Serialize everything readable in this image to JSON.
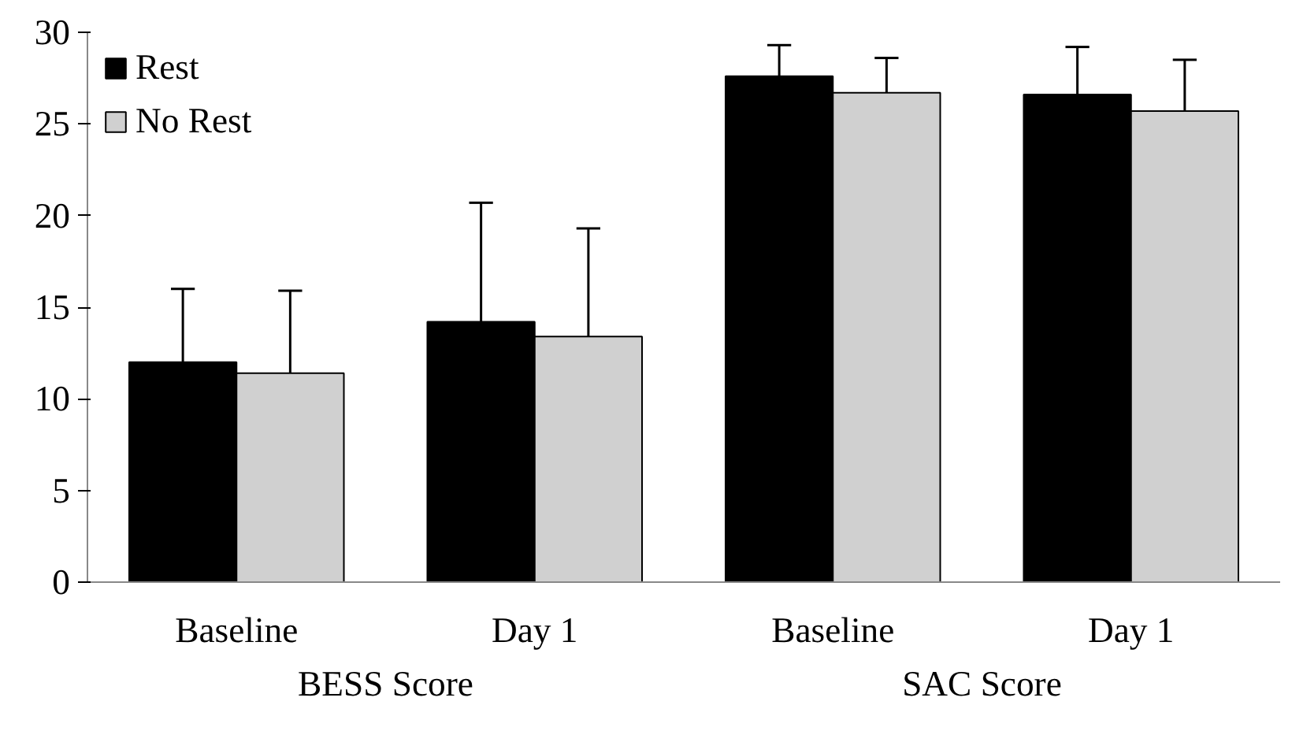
{
  "chart_data": {
    "type": "bar",
    "categories": [
      "Baseline",
      "Day 1",
      "Baseline",
      "Day 1"
    ],
    "series": [
      {
        "name": "Rest",
        "color": "#000000",
        "values": [
          12.0,
          14.2,
          27.6,
          26.6
        ],
        "errors": [
          [
            12.0,
            16.0
          ],
          [
            14.2,
            20.7
          ],
          [
            27.6,
            29.3
          ],
          [
            26.6,
            29.2
          ]
        ]
      },
      {
        "name": "No Rest",
        "color": "#d0d0d0",
        "values": [
          11.4,
          13.4,
          26.7,
          25.7
        ],
        "errors": [
          [
            11.4,
            15.9
          ],
          [
            13.4,
            19.3
          ],
          [
            26.7,
            28.6
          ],
          [
            25.7,
            28.5
          ]
        ]
      }
    ],
    "annotations": [
      "BESS Score",
      "SAC Score"
    ],
    "ylim": [
      0,
      30
    ],
    "yticks": [
      0,
      5,
      10,
      15,
      20,
      25,
      30
    ],
    "grid": false,
    "legend": "top left"
  }
}
